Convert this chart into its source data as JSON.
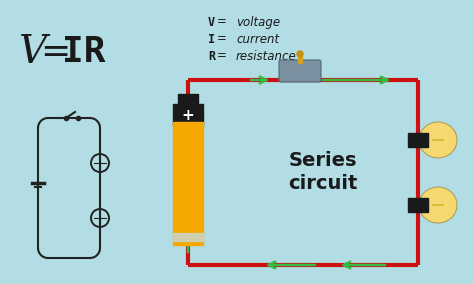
{
  "bg_color": "#b2dde4",
  "formula_v": "V",
  "formula_eq": " = ",
  "formula_ir": "IR",
  "legend_items": [
    {
      "var": "V",
      "eq": "  =",
      "desc": "  voltage"
    },
    {
      "var": "I",
      "eq": "  =",
      "desc": "  current"
    },
    {
      "var": "R",
      "eq": "  =",
      "desc": "  resistance"
    }
  ],
  "series_label": "Series\ncircuit",
  "circuit_color": "#cc1111",
  "arrow_color": "#33bb44",
  "battery_orange": "#f5a800",
  "battery_black": "#1a1a1a",
  "battery_red": "#cc2222",
  "switch_gray": "#7a8fa0",
  "switch_knob": "#d4a020",
  "bulb_glass": "#f5d870",
  "bulb_socket": "#1a1a1a",
  "wire_dark": "#222222",
  "text_dark": "#1a1a1a"
}
